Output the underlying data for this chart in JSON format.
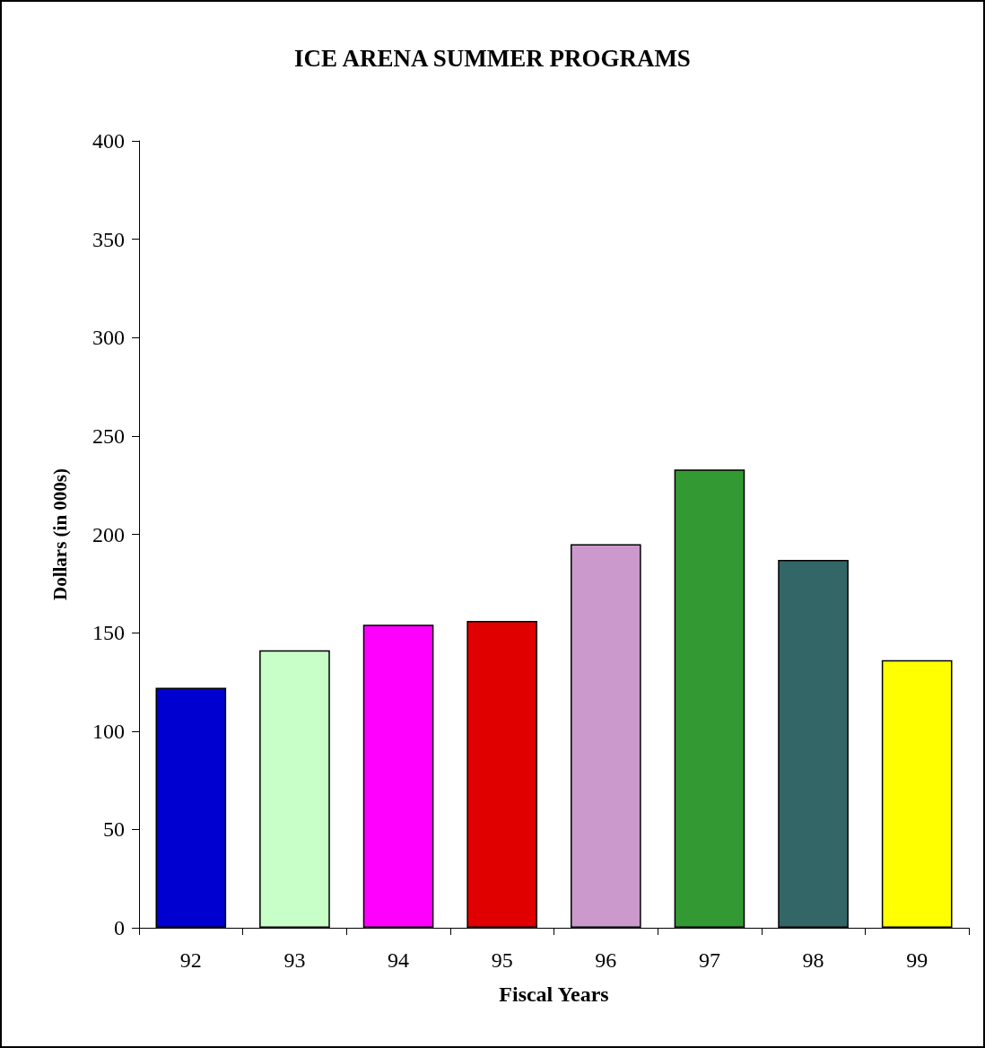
{
  "chart_data": {
    "type": "bar",
    "title": "ICE ARENA SUMMER PROGRAMS",
    "xlabel": "Fiscal Years",
    "ylabel": "Dollars (in 000s)",
    "categories": [
      "92",
      "93",
      "94",
      "95",
      "96",
      "97",
      "98",
      "99"
    ],
    "values": [
      122,
      141,
      154,
      156,
      195,
      233,
      187,
      136
    ],
    "colors": [
      "#0000d0",
      "#c8ffc8",
      "#ff00ff",
      "#e00000",
      "#cc99cc",
      "#339933",
      "#336666",
      "#ffff00"
    ],
    "ylim": [
      0,
      400
    ],
    "yticks": [
      0,
      50,
      100,
      150,
      200,
      250,
      300,
      350,
      400
    ],
    "grid": false
  }
}
